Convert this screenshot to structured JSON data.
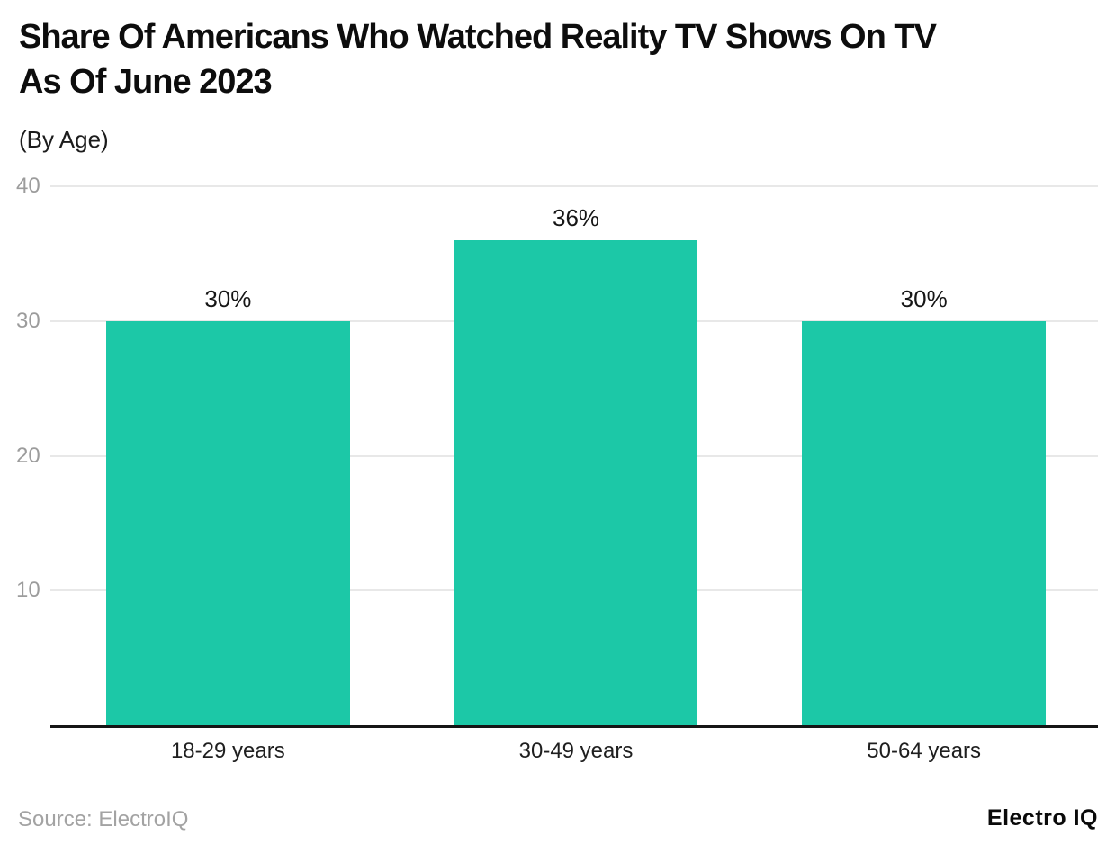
{
  "header": {
    "title_line1": "Share Of Americans Who Watched Reality TV Shows On TV",
    "title_line2": "As Of June 2023",
    "subtitle": "(By Age)"
  },
  "footer": {
    "source": "Source: ElectroIQ",
    "brand": "Electro IQ"
  },
  "colors": {
    "bar": "#1cc8a7",
    "gridline": "#e8e8e8",
    "axis": "#151515",
    "ytick_text": "#9c9c9c"
  },
  "chart_data": {
    "type": "bar",
    "title": "Share Of Americans Who Watched Reality TV Shows On TV As Of June 2023",
    "subtitle": "(By Age)",
    "categories": [
      "18-29 years",
      "30-49 years",
      "50-64 years"
    ],
    "values": [
      30,
      36,
      30
    ],
    "value_labels": [
      "30%",
      "36%",
      "30%"
    ],
    "xlabel": "",
    "ylabel": "",
    "ylim": [
      0,
      40
    ],
    "yticks": [
      10,
      20,
      30,
      40
    ],
    "grid": true,
    "legend": false,
    "bar_color": "#1cc8a7"
  }
}
